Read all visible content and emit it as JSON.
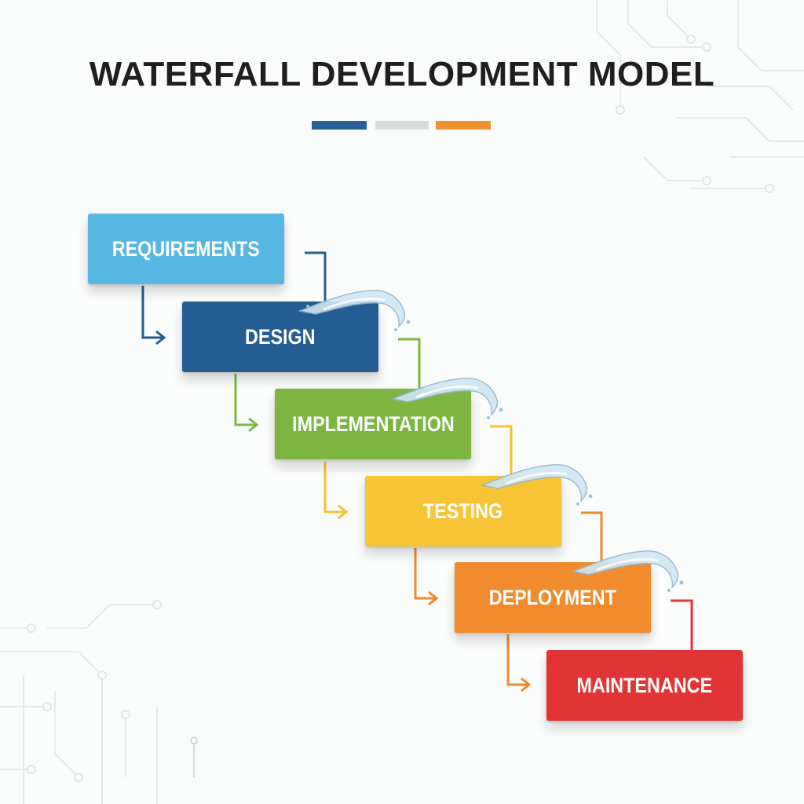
{
  "diagram": {
    "title": "WATERFALL DEVELOPMENT MODEL",
    "title_bar_colors": [
      "#27609b",
      "#dadcdc",
      "#f0922f"
    ],
    "phases": [
      {
        "label": "REQUIREMENTS",
        "color": "#55b7e2",
        "connector_color": "#235d92"
      },
      {
        "label": "DESIGN",
        "color": "#245d92",
        "connector_color": "#7ab944"
      },
      {
        "label": "IMPLEMENTATION",
        "color": "#7cb540",
        "connector_color": "#f3c22f"
      },
      {
        "label": "TESTING",
        "color": "#f6c435",
        "connector_color": "#ee8a2c"
      },
      {
        "label": "DEPLOYMENT",
        "color": "#f08c2e",
        "connector_color": "#e43434"
      },
      {
        "label": "MAINTENANCE",
        "color": "#e23434",
        "connector_color": null
      }
    ]
  }
}
